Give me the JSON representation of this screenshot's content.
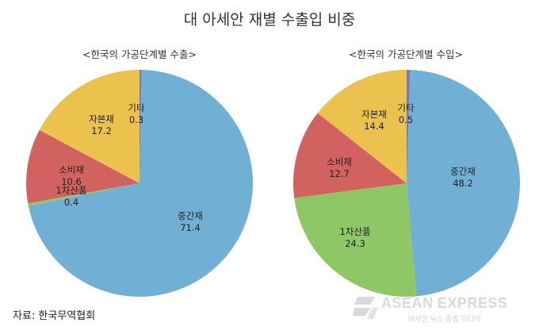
{
  "title": "대 아세안 재별 수출입 비중",
  "source": "자료: 한국무역협회",
  "watermark": {
    "brand": "ASEAN EXPRESS",
    "tagline": "아세안 뉴스 종합 미디어"
  },
  "colors": {
    "중간재": "#70b0d4",
    "1차산품": "#8ec763",
    "소비재": "#d2625f",
    "자본재": "#ecc24f",
    "기타": "#7c78b8"
  },
  "chart_data": [
    {
      "type": "pie",
      "title": "<한국의 가공단계별 수출>",
      "slices": [
        {
          "label": "기타",
          "value": 0.3
        },
        {
          "label": "중간재",
          "value": 71.4
        },
        {
          "label": "1차산품",
          "value": 0.4
        },
        {
          "label": "소비재",
          "value": 10.6
        },
        {
          "label": "자본재",
          "value": 17.2
        }
      ],
      "start": "12 o'clock",
      "direction": "clockwise",
      "legend": "none"
    },
    {
      "type": "pie",
      "title": "<한국의 가공단계별 수입>",
      "slices": [
        {
          "label": "기타",
          "value": 0.5
        },
        {
          "label": "중간재",
          "value": 48.2
        },
        {
          "label": "1차산품",
          "value": 24.3
        },
        {
          "label": "소비재",
          "value": 12.7
        },
        {
          "label": "자본재",
          "value": 14.4
        }
      ],
      "start": "12 o'clock",
      "direction": "clockwise",
      "legend": "none"
    }
  ]
}
